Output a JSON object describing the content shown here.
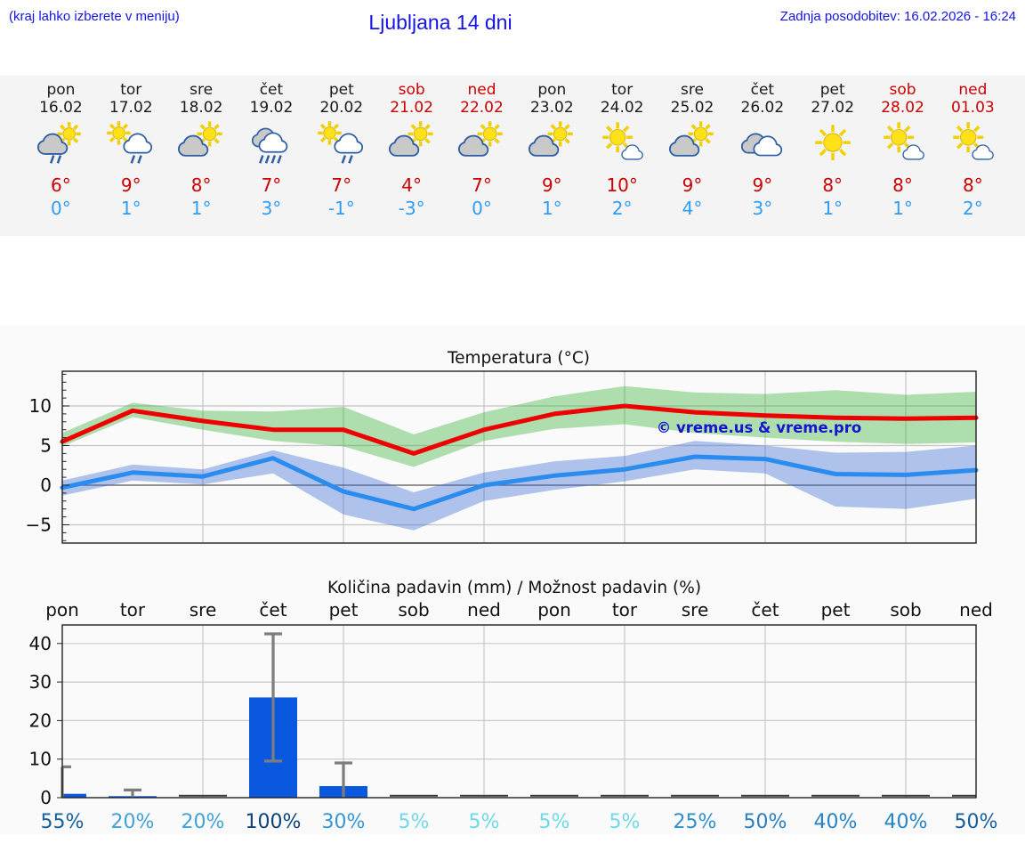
{
  "header": {
    "hint": "(kraj lahko izberete v meniju)",
    "title": "Ljubljana 14 dni",
    "updated": "Zadnja posodobitev: 16.02.2026 - 16:24",
    "text_color": "#1414e6"
  },
  "colors": {
    "strip_bg": "#f4f4f4",
    "section_bg": "#fafafa",
    "tmax_text": "#cc0000",
    "tmin_text": "#2e9df5",
    "weekend_text": "#cc0000",
    "red_line": "#ee0000",
    "blue_line": "#2b8cf0",
    "green_band": "rgba(60,180,60,0.4)",
    "blue_band": "rgba(60,110,215,0.4)",
    "bar": "#0b58e0",
    "error_bar": "#7d7d7d",
    "watermark": "#1515d0"
  },
  "forecast_days": [
    {
      "name": "pon",
      "date": "16.02",
      "weekend": false,
      "icon": "rain-sun-graycloud",
      "tmax": "6°",
      "tmin": "0°"
    },
    {
      "name": "tor",
      "date": "17.02",
      "weekend": false,
      "icon": "rain-sun-whitecloud",
      "tmax": "9°",
      "tmin": "1°"
    },
    {
      "name": "sre",
      "date": "18.02",
      "weekend": false,
      "icon": "sun-graycloud",
      "tmax": "8°",
      "tmin": "1°"
    },
    {
      "name": "čet",
      "date": "19.02",
      "weekend": false,
      "icon": "heavy-rain",
      "tmax": "7°",
      "tmin": "3°"
    },
    {
      "name": "pet",
      "date": "20.02",
      "weekend": false,
      "icon": "rain-sun-whitecloud",
      "tmax": "7°",
      "tmin": "-1°"
    },
    {
      "name": "sob",
      "date": "21.02",
      "weekend": true,
      "icon": "sun-graycloud",
      "tmax": "4°",
      "tmin": "-3°"
    },
    {
      "name": "ned",
      "date": "22.02",
      "weekend": true,
      "icon": "sun-graycloud",
      "tmax": "7°",
      "tmin": "0°"
    },
    {
      "name": "pon",
      "date": "23.02",
      "weekend": false,
      "icon": "sun-graycloud",
      "tmax": "9°",
      "tmin": "1°"
    },
    {
      "name": "tor",
      "date": "24.02",
      "weekend": false,
      "icon": "sun-smallcloud",
      "tmax": "10°",
      "tmin": "2°"
    },
    {
      "name": "sre",
      "date": "25.02",
      "weekend": false,
      "icon": "sun-graycloud",
      "tmax": "9°",
      "tmin": "4°"
    },
    {
      "name": "čet",
      "date": "26.02",
      "weekend": false,
      "icon": "cloudy",
      "tmax": "9°",
      "tmin": "3°"
    },
    {
      "name": "pet",
      "date": "27.02",
      "weekend": false,
      "icon": "sunny",
      "tmax": "8°",
      "tmin": "1°"
    },
    {
      "name": "sob",
      "date": "28.02",
      "weekend": true,
      "icon": "sun-smallcloud",
      "tmax": "8°",
      "tmin": "1°"
    },
    {
      "name": "ned",
      "date": "01.03",
      "weekend": true,
      "icon": "sun-smallcloud",
      "tmax": "8°",
      "tmin": "2°"
    }
  ],
  "chart_data": [
    {
      "type": "line",
      "title": "Temperatura (°C)",
      "watermark": "© vreme.us & vreme.pro",
      "ylim": [
        -7.3,
        14.4
      ],
      "yticks": [
        -5,
        0,
        5,
        10
      ],
      "grid_vertical_day_indices": [
        3,
        5,
        7,
        9,
        11,
        13
      ],
      "x_days": [
        "pon 16.02",
        "tor 17.02",
        "sre 18.02",
        "čet 19.02",
        "pet 20.02",
        "sob 21.02",
        "ned 22.02",
        "pon 23.02",
        "tor 24.02",
        "sre 25.02",
        "čet 26.02",
        "pet 27.02",
        "sob 28.02",
        "ned 01.03"
      ],
      "series": [
        {
          "name": "max-temp",
          "color": "#ee0000",
          "values": [
            5.5,
            9.4,
            8.1,
            7.0,
            7.0,
            4.0,
            7.0,
            9.0,
            10.0,
            9.2,
            8.8,
            8.5,
            8.4,
            8.5
          ],
          "band_color": "rgba(60,180,60,0.4)",
          "band_upper": [
            6.6,
            10.4,
            9.4,
            9.3,
            9.9,
            6.4,
            9.2,
            11.2,
            12.5,
            11.7,
            11.5,
            12.0,
            11.4,
            11.8
          ],
          "band_lower": [
            4.9,
            8.6,
            7.0,
            5.6,
            4.9,
            2.3,
            5.6,
            7.1,
            7.7,
            6.6,
            6.0,
            5.5,
            5.2,
            5.4
          ]
        },
        {
          "name": "min-temp",
          "color": "#2b8cf0",
          "values": [
            -0.3,
            1.6,
            1.1,
            3.4,
            -0.8,
            -3.0,
            0.0,
            1.2,
            2.0,
            3.6,
            3.3,
            1.4,
            1.3,
            1.9
          ],
          "band_color": "rgba(60,110,215,0.4)",
          "band_upper": [
            0.6,
            2.6,
            2.0,
            4.4,
            2.2,
            -0.9,
            1.6,
            3.0,
            3.7,
            5.6,
            5.0,
            4.1,
            4.2,
            5.0
          ],
          "band_lower": [
            -1.3,
            0.6,
            0.1,
            1.5,
            -3.7,
            -5.7,
            -2.0,
            -0.6,
            0.5,
            2.0,
            1.5,
            -2.7,
            -3.0,
            -1.7
          ]
        }
      ]
    },
    {
      "type": "bar",
      "title": "Količina padavin (mm) / Možnost padavin (%)",
      "categories": [
        "pon",
        "tor",
        "sre",
        "čet",
        "pet",
        "sob",
        "ned",
        "pon",
        "tor",
        "sre",
        "čet",
        "pet",
        "sob",
        "ned"
      ],
      "values": [
        1.0,
        0.4,
        0,
        26,
        3,
        0,
        0,
        0,
        0,
        0,
        0,
        0,
        0,
        0
      ],
      "error_bars": [
        {
          "index": 0,
          "lo": 0,
          "hi": 8
        },
        {
          "index": 1,
          "lo": 0,
          "hi": 2
        },
        {
          "index": 3,
          "lo": 9.5,
          "hi": 42.5
        },
        {
          "index": 4,
          "lo": 0,
          "hi": 9
        }
      ],
      "percent_labels": [
        "55%",
        "20%",
        "20%",
        "100%",
        "30%",
        "5%",
        "5%",
        "5%",
        "5%",
        "25%",
        "50%",
        "40%",
        "40%",
        "50%"
      ],
      "percent_colors": [
        "#15609f",
        "#41a3d9",
        "#41a3d9",
        "#0d4379",
        "#3598d3",
        "#6fd9e9",
        "#6fd9e9",
        "#6fd9e9",
        "#6fd9e9",
        "#2e8fce",
        "#2a7fc0",
        "#2684c6",
        "#2684c6",
        "#175f9d"
      ],
      "ylim": [
        0,
        44.8
      ],
      "yticks": [
        0,
        10,
        20,
        30,
        40
      ],
      "grid_vertical_day_indices": [
        3,
        5,
        7,
        9,
        11,
        13
      ],
      "bar_color": "#0b58e0"
    }
  ]
}
